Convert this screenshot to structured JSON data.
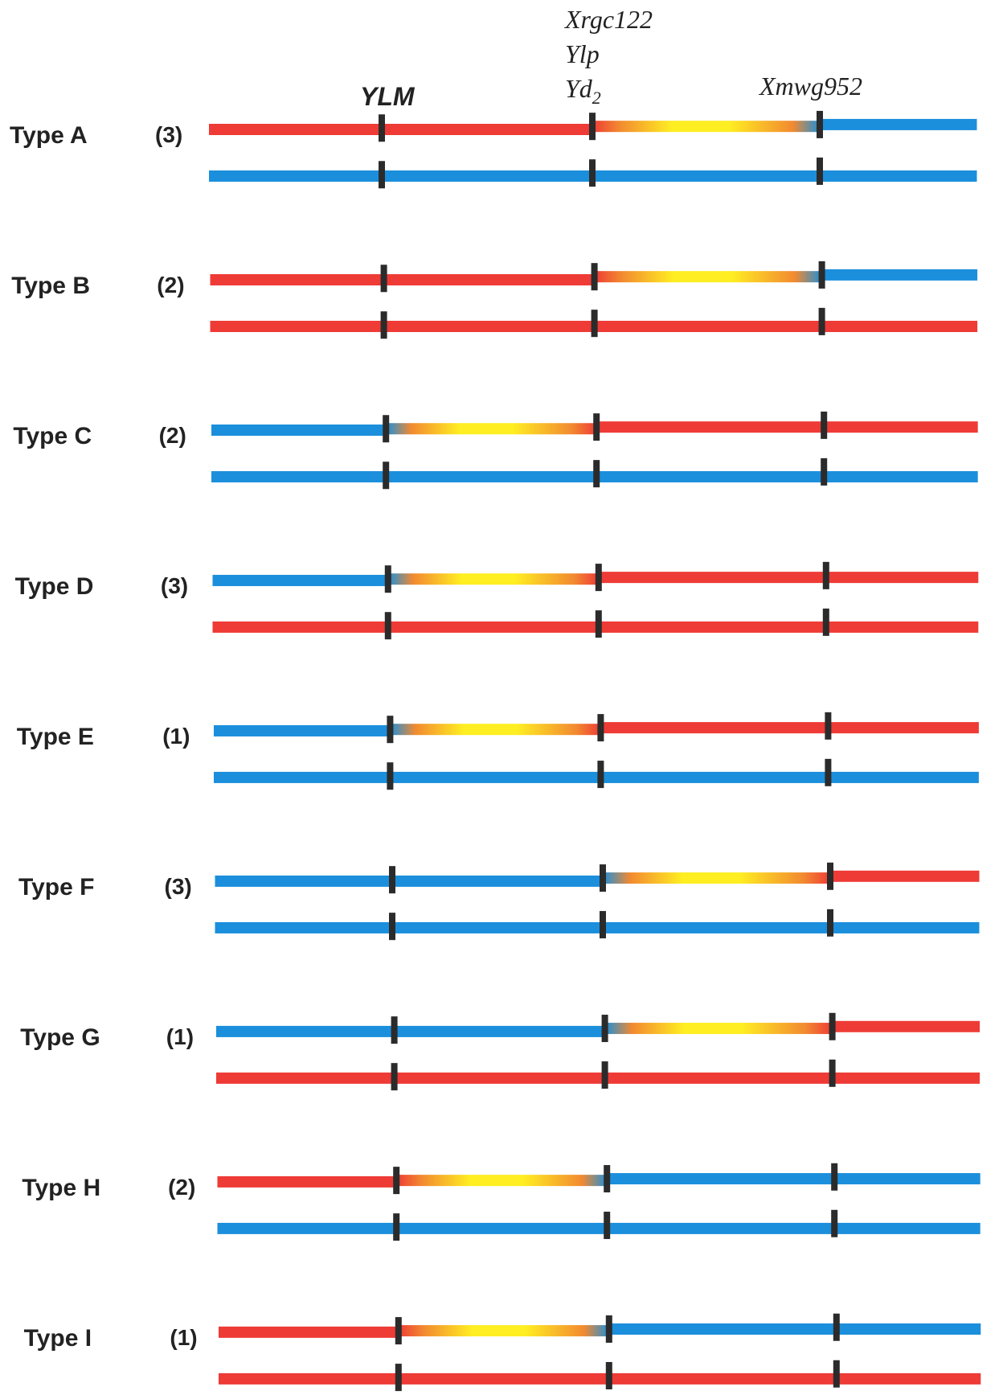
{
  "markers": [
    {
      "id": "ylm",
      "lines": [
        "YLM"
      ]
    },
    {
      "id": "mid",
      "lines": [
        "Xrgc122",
        "Ylp",
        "Yd",
        "2"
      ]
    },
    {
      "id": "xmwg",
      "lines": [
        "Xmwg952"
      ]
    }
  ],
  "colors": {
    "red": "#ee3b36",
    "blue": "#1b8fdc",
    "yellow": "#ffee22",
    "orange": "#f28a30",
    "marker": "#2b2b2b"
  },
  "rows": [
    {
      "label": "Type A",
      "count": "(3)",
      "top": [
        [
          "red",
          0,
          2
        ],
        [
          "grad",
          2,
          3
        ],
        [
          "blue",
          3,
          4
        ]
      ],
      "bottom": [
        [
          "blue",
          0,
          4
        ]
      ]
    },
    {
      "label": "Type B",
      "count": "(2)",
      "top": [
        [
          "red",
          0,
          2
        ],
        [
          "grad",
          2,
          3
        ],
        [
          "blue",
          3,
          4
        ]
      ],
      "bottom": [
        [
          "red",
          0,
          4
        ]
      ]
    },
    {
      "label": "Type C",
      "count": "(2)",
      "top": [
        [
          "blue",
          0,
          1
        ],
        [
          "grad",
          1,
          2
        ],
        [
          "red",
          2,
          4
        ]
      ],
      "bottom": [
        [
          "blue",
          0,
          4
        ]
      ]
    },
    {
      "label": "Type D",
      "count": "(3)",
      "top": [
        [
          "blue",
          0,
          1
        ],
        [
          "grad",
          1,
          2
        ],
        [
          "red",
          2,
          4
        ]
      ],
      "bottom": [
        [
          "red",
          0,
          4
        ]
      ]
    },
    {
      "label": "Type E",
      "count": "(1)",
      "top": [
        [
          "blue",
          0,
          1
        ],
        [
          "grad",
          1,
          2
        ],
        [
          "red",
          2,
          4
        ]
      ],
      "bottom": [
        [
          "blue",
          0,
          4
        ]
      ]
    },
    {
      "label": "Type F",
      "count": "(3)",
      "top": [
        [
          "blue",
          0,
          2
        ],
        [
          "grad",
          2,
          3
        ],
        [
          "red",
          3,
          4
        ]
      ],
      "bottom": [
        [
          "blue",
          0,
          4
        ]
      ]
    },
    {
      "label": "Type G",
      "count": "(1)",
      "top": [
        [
          "blue",
          0,
          2
        ],
        [
          "grad",
          2,
          3
        ],
        [
          "red",
          3,
          4
        ]
      ],
      "bottom": [
        [
          "red",
          0,
          4
        ]
      ]
    },
    {
      "label": "Type H",
      "count": "(2)",
      "top": [
        [
          "red",
          0,
          1
        ],
        [
          "grad",
          1,
          2
        ],
        [
          "blue",
          2,
          4
        ]
      ],
      "bottom": [
        [
          "blue",
          0,
          4
        ]
      ]
    },
    {
      "label": "Type I",
      "count": "(1)",
      "top": [
        [
          "red",
          0,
          1
        ],
        [
          "grad",
          1,
          2
        ],
        [
          "blue",
          2,
          4
        ]
      ],
      "bottom": [
        [
          "red",
          0,
          4
        ]
      ]
    }
  ]
}
